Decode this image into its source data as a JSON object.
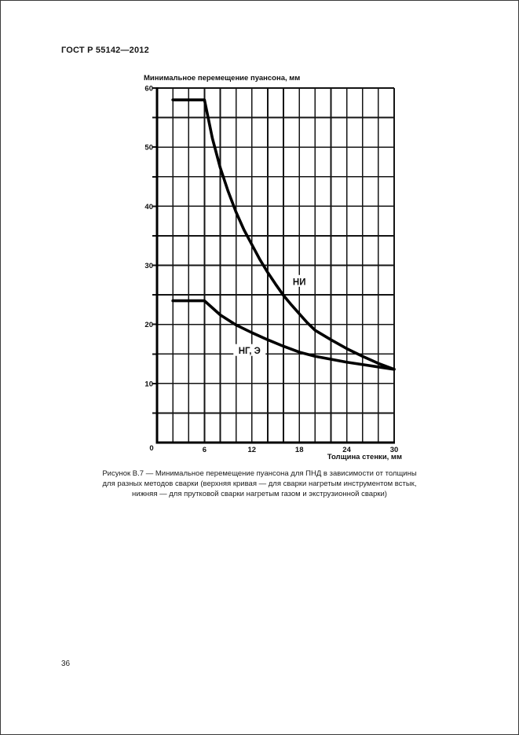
{
  "page": {
    "header": "ГОСТ Р 55142—2012",
    "page_number": "36"
  },
  "figure": {
    "caption_line1": "Рисунок В.7 — Минимальное перемещение пуансона для ПНД в зависимости от толщины",
    "caption_line2": "для разных методов сварки (верхняя кривая — для сварки нагретым инструментом встык,",
    "caption_line3": "нижняя — для прутковой сварки нагретым газом и экструзионной сварки)"
  },
  "chart_data": {
    "type": "line",
    "title": "",
    "ylabel": "Минимальное перемещение пуансона, мм",
    "xlabel": "Толщина стенки, мм",
    "xlim": [
      0,
      30
    ],
    "ylim": [
      0,
      60
    ],
    "x_ticks": [
      0,
      6,
      12,
      18,
      24,
      30
    ],
    "y_ticks": [
      0,
      10,
      20,
      30,
      40,
      50,
      60
    ],
    "x_grid_step": 2,
    "y_grid_step": 5,
    "grid": true,
    "legend": "inline-labels",
    "line_color": "#000000",
    "series": [
      {
        "name": "НИ",
        "label_position": {
          "x": 18.0,
          "y": 27.3
        },
        "x": [
          2,
          6,
          7,
          8,
          9,
          10,
          11,
          12,
          13,
          14,
          15,
          16,
          17,
          18,
          19,
          20,
          22,
          24,
          26,
          28,
          30
        ],
        "y": [
          58,
          58,
          51.5,
          46.5,
          42.5,
          39,
          36,
          33.5,
          31,
          28.8,
          26.8,
          24.9,
          23.3,
          21.8,
          20.3,
          19,
          17.4,
          15.9,
          14.6,
          13.4,
          12.4
        ]
      },
      {
        "name": "НГ, Э",
        "label_position": {
          "x": 11.7,
          "y": 15.6
        },
        "x": [
          2,
          6,
          8,
          10,
          12,
          14,
          16,
          18,
          20,
          22,
          24,
          26,
          28,
          30
        ],
        "y": [
          24,
          24,
          21.6,
          19.9,
          18.6,
          17.4,
          16.3,
          15.3,
          14.6,
          14.1,
          13.6,
          13.2,
          12.8,
          12.4
        ]
      }
    ]
  }
}
